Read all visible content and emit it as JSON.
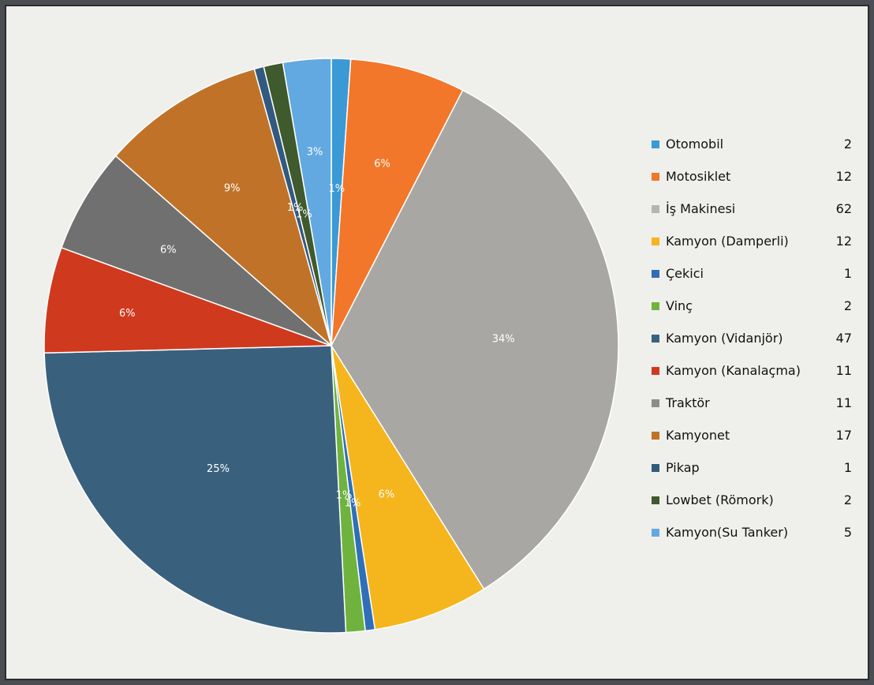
{
  "chart_data": {
    "type": "pie",
    "title": "",
    "categories": [
      "Otomobil",
      "Motosiklet",
      "İş Makinesi",
      "Kamyon (Damperli)",
      "Çekici",
      "Vinç",
      "Kamyon (Vidanjör)",
      "Kamyon (Kanalaçma)",
      "Traktör",
      "Kamyonet",
      "Pikap",
      "Lowbet (Römork)",
      "Kamyon(Su Tanker)"
    ],
    "values": [
      2,
      12,
      62,
      12,
      1,
      2,
      47,
      11,
      11,
      17,
      1,
      2,
      5
    ],
    "colors": [
      "#3b9ad6",
      "#f2772a",
      "#a8a7a3",
      "#f5b51c",
      "#2f6fb8",
      "#6fb33e",
      "#39617e",
      "#cf3a1f",
      "#707070",
      "#c07328",
      "#325a80",
      "#3f5a2c",
      "#62a9e2"
    ],
    "legend": {
      "position": "right",
      "items": [
        {
          "label": "Otomobil",
          "value": "2"
        },
        {
          "label": "Motosiklet",
          "value": "12"
        },
        {
          "label": "İş Makinesi",
          "value": "62"
        },
        {
          "label": "Kamyon (Damperli)",
          "value": "12"
        },
        {
          "label": "Çekici",
          "value": "1"
        },
        {
          "label": "Vinç",
          "value": "2"
        },
        {
          "label": "Kamyon (Vidanjör)",
          "value": "47"
        },
        {
          "label": "Kamyon (Kanalaçma)",
          "value": "11"
        },
        {
          "label": "Traktör",
          "value": "11"
        },
        {
          "label": "Kamyonet",
          "value": "17"
        },
        {
          "label": "Pikap",
          "value": "1"
        },
        {
          "label": "Lowbet (Römork)",
          "value": "2"
        },
        {
          "label": "Kamyon(Su Tanker)",
          "value": "5"
        }
      ]
    },
    "data_labels": [
      "1%",
      "6%",
      "34%",
      "6%",
      "1%",
      "1%",
      "25%",
      "6%",
      "6%",
      "9%",
      "1%",
      "1%",
      "3%"
    ],
    "legend_colors": [
      "#3b9ad6",
      "#f2772a",
      "#b4b4b2",
      "#f5b51c",
      "#2f6fb8",
      "#6fb33e",
      "#39617e",
      "#cf3a1f",
      "#8c8c8c",
      "#c07328",
      "#325a80",
      "#3f5a2c",
      "#62a9e2"
    ]
  }
}
